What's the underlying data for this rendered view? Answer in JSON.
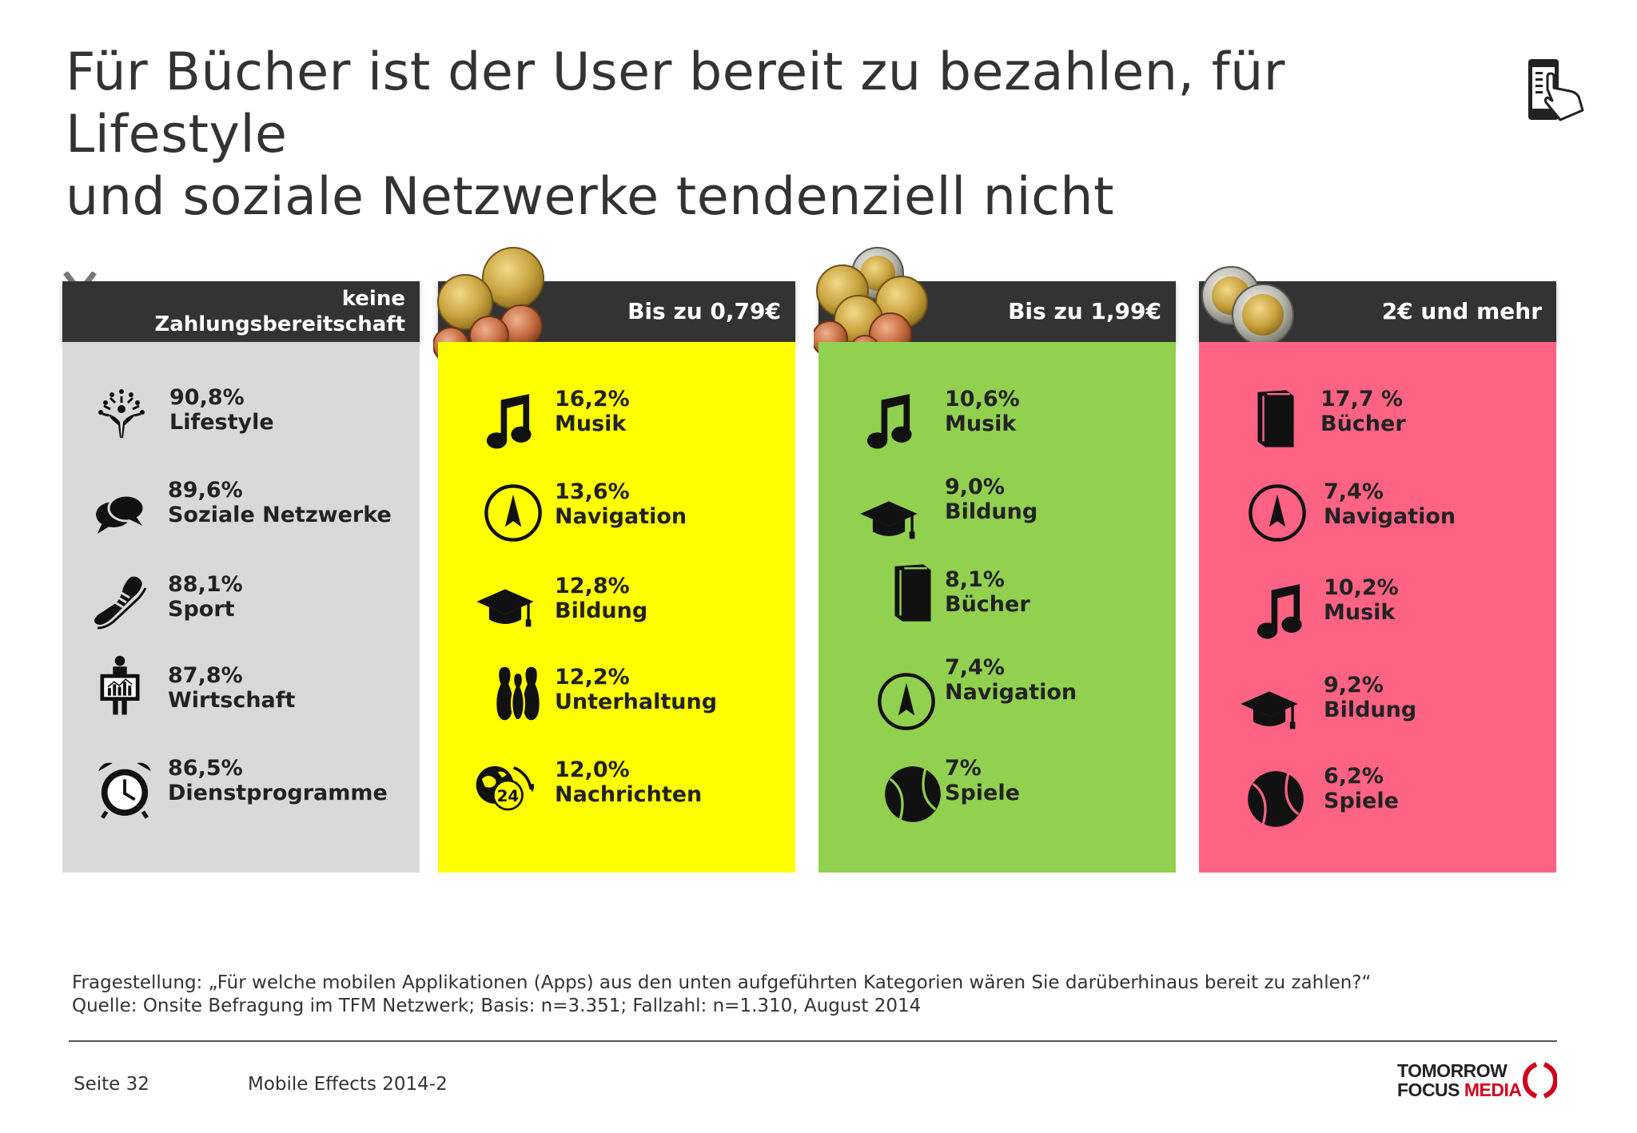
{
  "title": {
    "line1": "Für Bücher ist der User bereit zu bezahlen, für Lifestyle",
    "line2": "und soziale Netzwerke tendenziell nicht"
  },
  "header_icon": "smartphone-touch-icon",
  "columns": [
    {
      "header_line1": "keine",
      "header_line2": "Zahlungsbereitschaft",
      "color": "#d9d9d9",
      "decoration": "x-mark-icon",
      "items": [
        {
          "pct": "90,8%",
          "label": "Lifestyle",
          "icon": "tree-person-icon"
        },
        {
          "pct": "89,6%",
          "label": "Soziale Netzwerke",
          "icon": "speech-bubbles-icon"
        },
        {
          "pct": "88,1%",
          "label": "Sport",
          "icon": "sneaker-icon"
        },
        {
          "pct": "87,8%",
          "label": "Wirtschaft",
          "icon": "presenter-chart-icon"
        },
        {
          "pct": "86,5%",
          "label": "Dienstprogramme",
          "icon": "alarm-clock-icon"
        }
      ]
    },
    {
      "header": "Bis zu 0,79€",
      "color": "#ffff00",
      "decoration": "small-coins-icon",
      "items": [
        {
          "pct": "16,2%",
          "label": "Musik",
          "icon": "music-note-icon"
        },
        {
          "pct": "13,6%",
          "label": "Navigation",
          "icon": "compass-icon"
        },
        {
          "pct": "12,8%",
          "label": "Bildung",
          "icon": "graduation-cap-icon"
        },
        {
          "pct": "12,2%",
          "label": "Unterhaltung",
          "icon": "bowling-pins-icon"
        },
        {
          "pct": "12,0%",
          "label": "Nachrichten",
          "icon": "globe-24-icon"
        }
      ]
    },
    {
      "header": "Bis zu 1,99€",
      "color": "#92d050",
      "decoration": "coin-pile-icon",
      "items": [
        {
          "pct": "10,6%",
          "label": "Musik",
          "icon": "music-note-icon"
        },
        {
          "pct": "9,0%",
          "label": "Bildung",
          "icon": "graduation-cap-icon"
        },
        {
          "pct": "8,1%",
          "label": "Bücher",
          "icon": "book-icon"
        },
        {
          "pct": "7,4%",
          "label": "Navigation",
          "icon": "compass-icon"
        },
        {
          "pct": "7%",
          "label": "Spiele",
          "icon": "ball-icon"
        }
      ]
    },
    {
      "header": "2€ und mehr",
      "color": "#ff6384",
      "decoration": "two-euro-coins-icon",
      "items": [
        {
          "pct": "17,7 %",
          "label": "Bücher",
          "icon": "book-icon"
        },
        {
          "pct": "7,4%",
          "label": "Navigation",
          "icon": "compass-icon"
        },
        {
          "pct": "10,2%",
          "label": "Musik",
          "icon": "music-note-icon"
        },
        {
          "pct": "9,2%",
          "label": "Bildung",
          "icon": "graduation-cap-icon"
        },
        {
          "pct": "6,2%",
          "label": "Spiele",
          "icon": "ball-icon"
        }
      ]
    }
  ],
  "footnote": {
    "question": "Fragestellung: „Für welche mobilen Applikationen (Apps) aus den unten aufgeführten Kategorien wären Sie darüberhinaus bereit zu zahlen?“",
    "source": "Quelle: Onsite Befragung im TFM Netzwerk; Basis: n=3.351; Fallzahl: n=1.310, August 2014"
  },
  "footer": {
    "page": "Seite 32",
    "report": "Mobile Effects 2014-2",
    "logo_line1": "TOMORROW",
    "logo_line2_a": "FOCUS ",
    "logo_line2_b": "MEDIA"
  }
}
